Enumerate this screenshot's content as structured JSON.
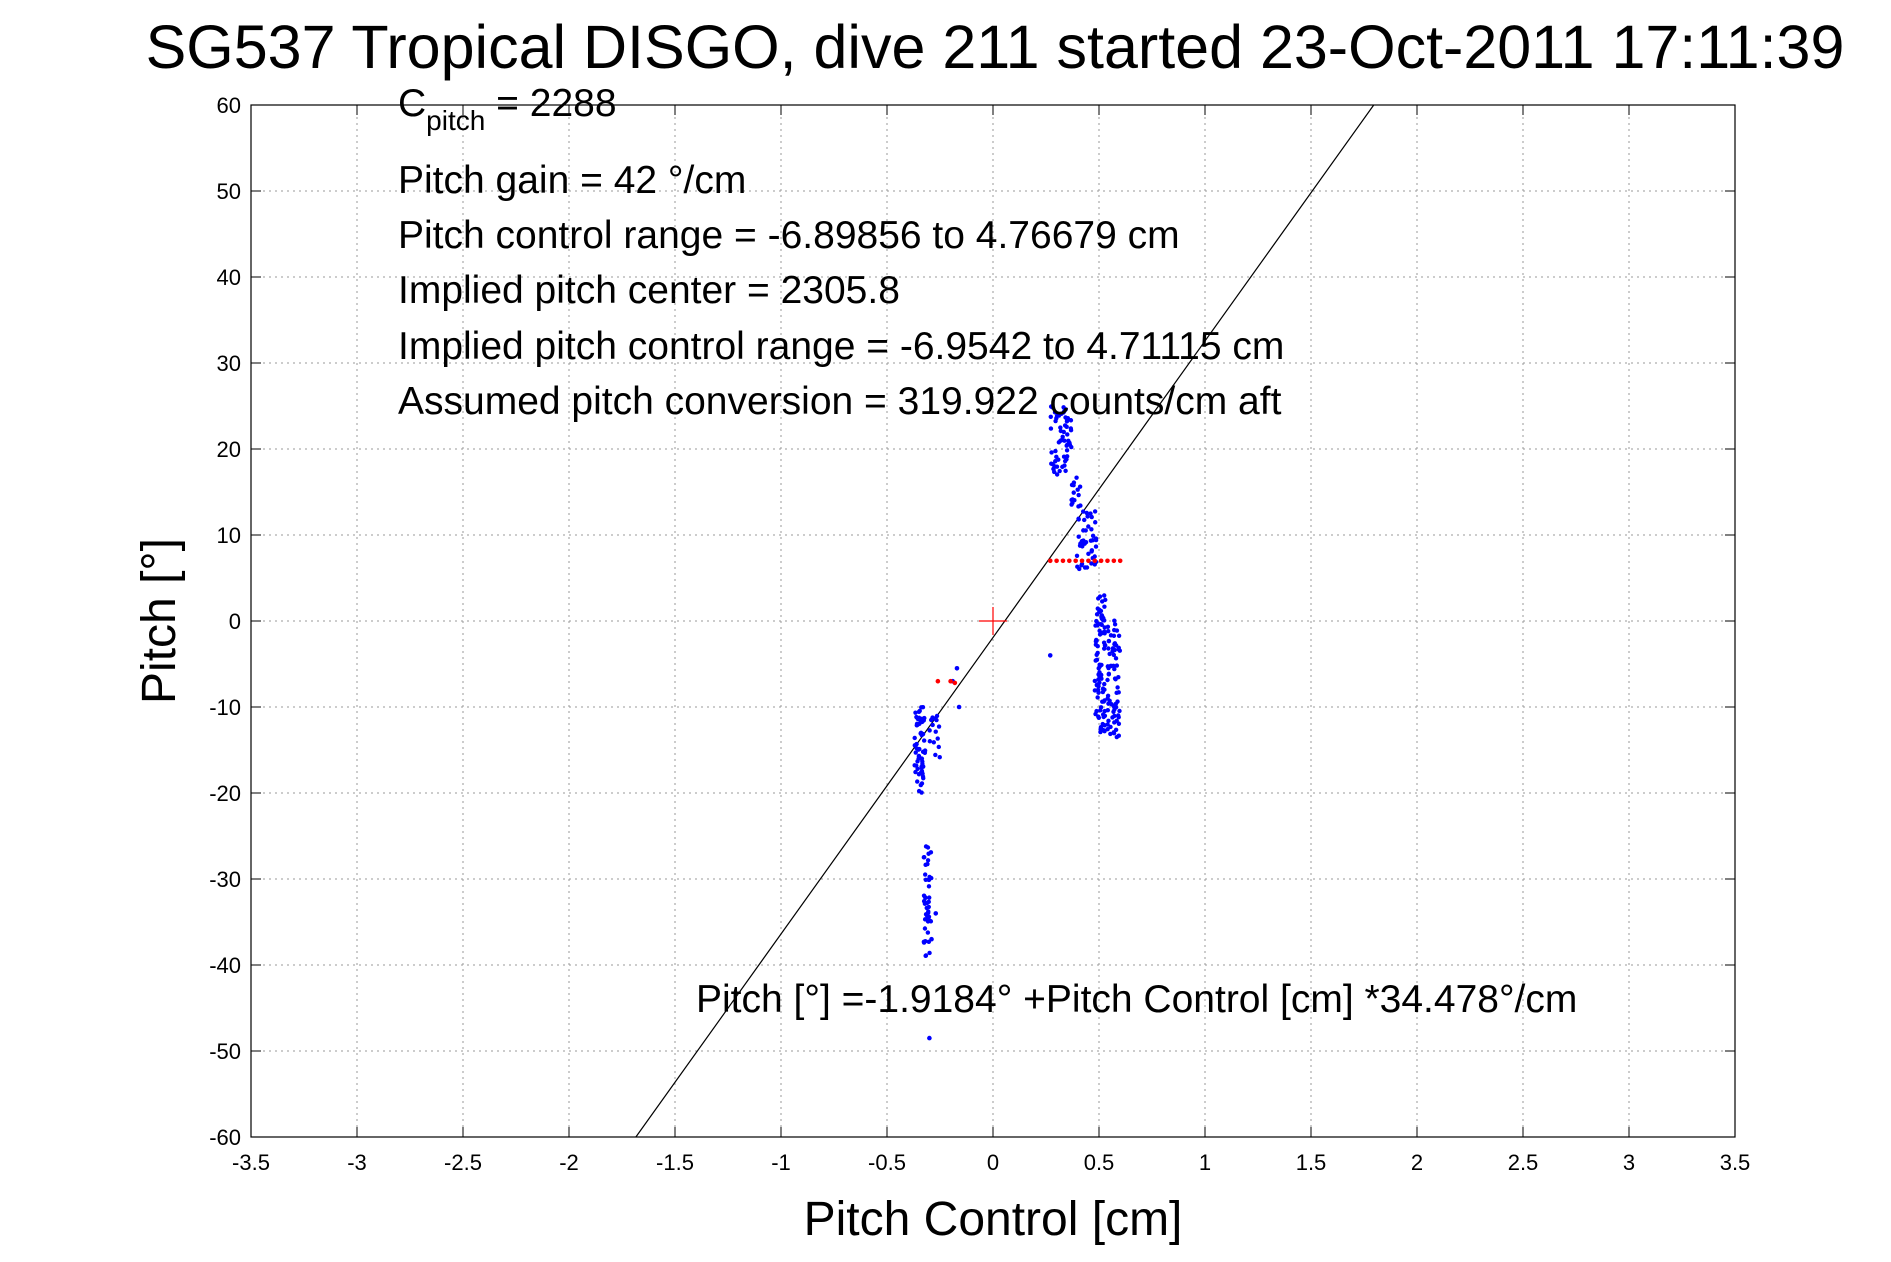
{
  "chart_data": {
    "type": "scatter",
    "title": "SG537 Tropical DISGO, dive 211 started 23-Oct-2011 17:11:39",
    "xlabel": "Pitch Control [cm]",
    "ylabel": "Pitch [°]",
    "xlim": [
      -3.5,
      3.5
    ],
    "ylim": [
      -60,
      60
    ],
    "xticks": [
      "-3.5",
      "-3",
      "-2.5",
      "-2",
      "-1.5",
      "-1",
      "-0.5",
      "0",
      "0.5",
      "1",
      "1.5",
      "2",
      "2.5",
      "3",
      "3.5"
    ],
    "yticks": [
      "-60",
      "-50",
      "-40",
      "-30",
      "-20",
      "-10",
      "0",
      "10",
      "20",
      "30",
      "40",
      "50",
      "60"
    ],
    "grid": true,
    "annotations": {
      "c_pitch_base": "C",
      "c_pitch_sub": "pitch",
      "c_pitch_value": " = 2288",
      "pitch_gain": "Pitch gain = 42 °/cm",
      "pitch_control_range": "Pitch control range = -6.89856 to 4.76679 cm",
      "implied_pitch_center": "Implied pitch center = 2305.8",
      "implied_pitch_control_range": "Implied pitch control range = -6.9542 to 4.71115 cm",
      "assumed_pitch_conversion": "Assumed pitch conversion = 319.922 counts/cm aft",
      "fit_equation": "Pitch [°] =-1.9184° +Pitch Control [cm] *34.478°/cm"
    },
    "fit_line": {
      "intercept": -1.9184,
      "slope": 34.478,
      "color": "#000000"
    },
    "origin_marker": {
      "x": 0,
      "y": 0,
      "color": "#ff0000"
    },
    "series": [
      {
        "color": "#0000ff",
        "clusters": [
          {
            "x": [
              -0.37,
              -0.32
            ],
            "y": [
              -20,
              -10
            ],
            "n": 60
          },
          {
            "x": [
              -0.33,
              -0.29
            ],
            "y": [
              -39,
              -26
            ],
            "n": 45
          },
          {
            "x": [
              -0.3,
              -0.25
            ],
            "y": [
              -16,
              -11
            ],
            "n": 15
          },
          {
            "x": [
              0.27,
              0.37
            ],
            "y": [
              17,
              25
            ],
            "n": 60
          },
          {
            "x": [
              0.37,
              0.42
            ],
            "y": [
              13,
              17
            ],
            "n": 15
          },
          {
            "x": [
              0.39,
              0.49
            ],
            "y": [
              6,
              13
            ],
            "n": 45
          },
          {
            "x": [
              0.48,
              0.53
            ],
            "y": [
              -13,
              3
            ],
            "n": 90
          },
          {
            "x": [
              0.54,
              0.6
            ],
            "y": [
              -13.5,
              0.5
            ],
            "n": 70
          }
        ],
        "points": [
          {
            "x": -0.3,
            "y": -48.5
          },
          {
            "x": -0.17,
            "y": -5.5
          },
          {
            "x": -0.19,
            "y": -7
          },
          {
            "x": -0.16,
            "y": -10
          },
          {
            "x": 0.27,
            "y": -4
          },
          {
            "x": -0.27,
            "y": -34
          },
          {
            "x": -0.29,
            "y": -37
          }
        ]
      },
      {
        "color": "#ff0000",
        "points": [
          {
            "x": 0.27,
            "y": 7
          },
          {
            "x": 0.3,
            "y": 7
          },
          {
            "x": 0.33,
            "y": 7
          },
          {
            "x": 0.36,
            "y": 7
          },
          {
            "x": 0.39,
            "y": 7
          },
          {
            "x": 0.42,
            "y": 7
          },
          {
            "x": 0.45,
            "y": 7
          },
          {
            "x": 0.48,
            "y": 7
          },
          {
            "x": 0.51,
            "y": 7
          },
          {
            "x": 0.54,
            "y": 7
          },
          {
            "x": 0.57,
            "y": 7
          },
          {
            "x": 0.6,
            "y": 7
          },
          {
            "x": -0.26,
            "y": -7
          },
          {
            "x": -0.2,
            "y": -7
          },
          {
            "x": -0.18,
            "y": -7.2
          }
        ]
      }
    ]
  }
}
